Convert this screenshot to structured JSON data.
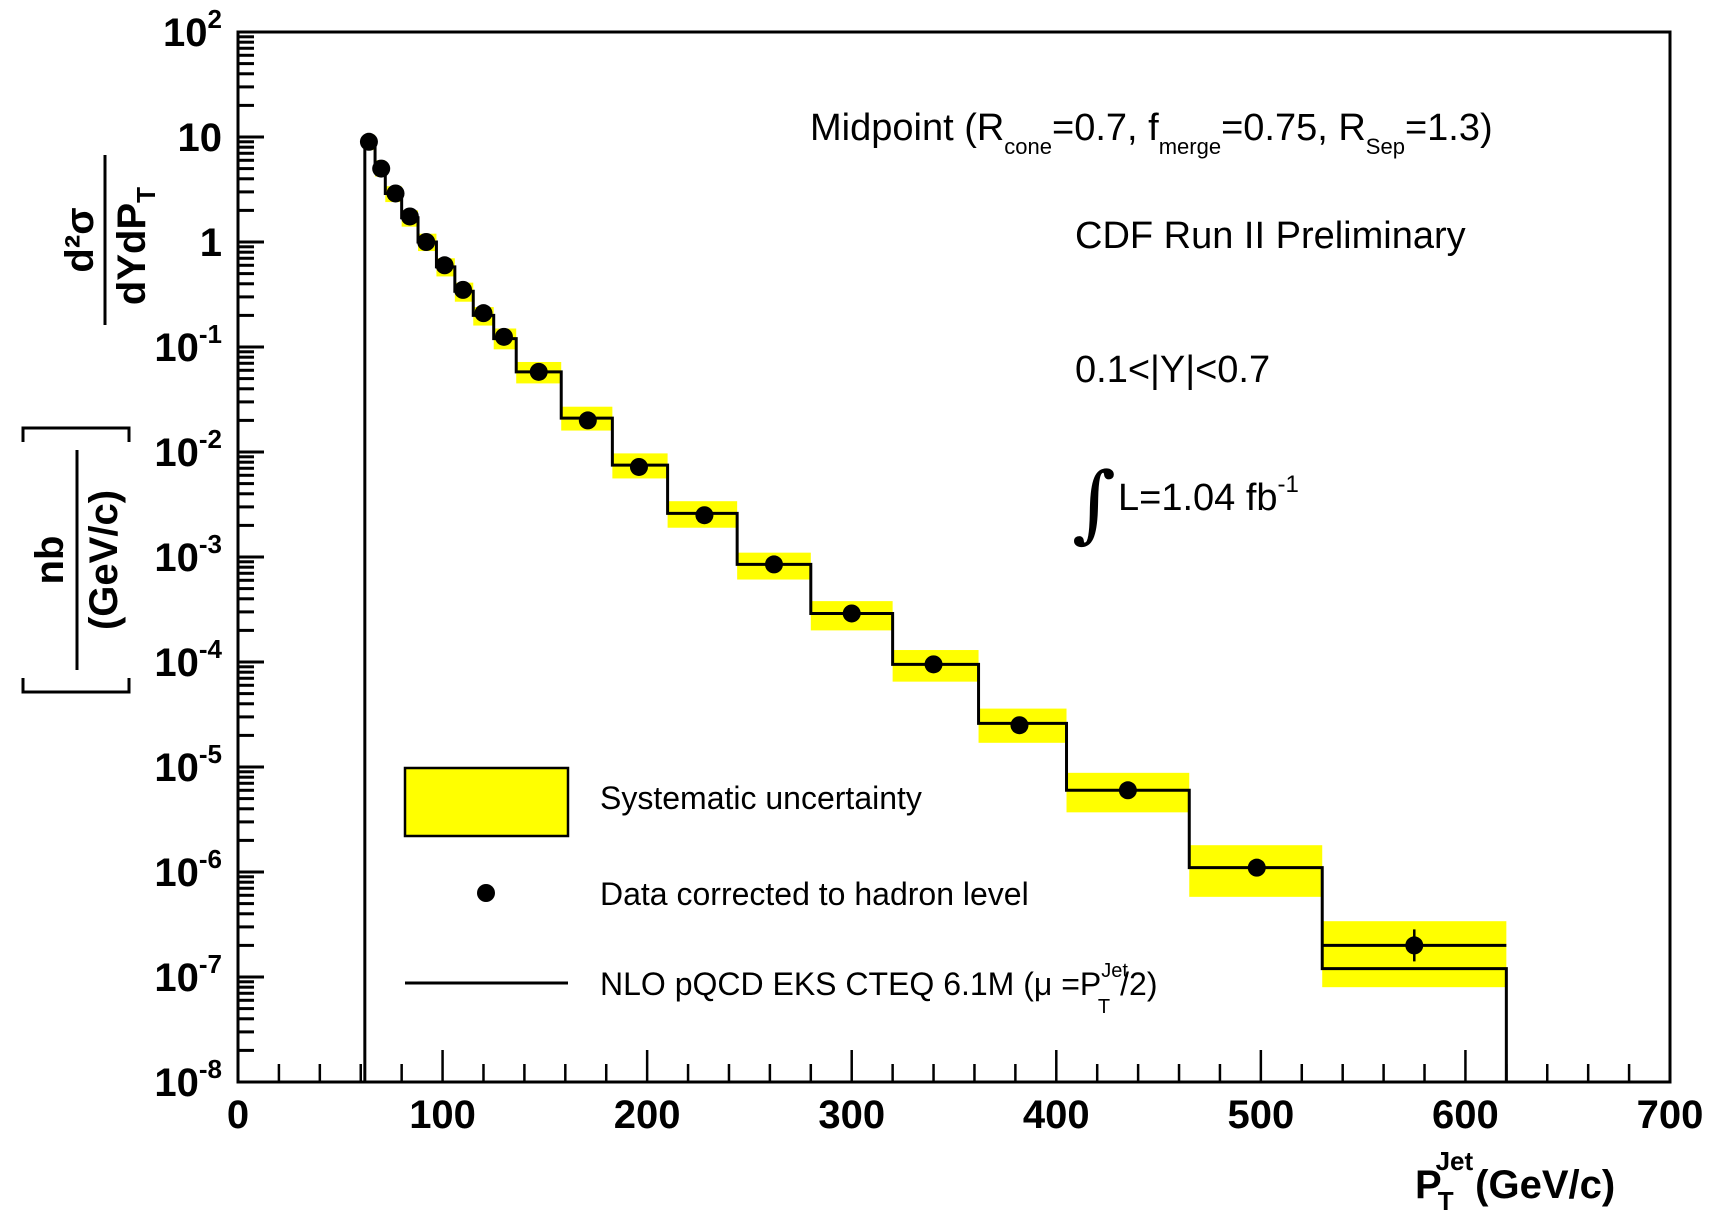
{
  "chart_data": {
    "type": "step-histogram-with-points",
    "x_axis": {
      "label_main": "P",
      "label_sub": "T",
      "label_sup": "Jet",
      "label_unit": "(GeV/c)",
      "range": [
        0,
        700
      ],
      "ticks": [
        0,
        100,
        200,
        300,
        400,
        500,
        600,
        700
      ],
      "tick_labels": [
        "0",
        "100",
        "200",
        "300",
        "400",
        "500",
        "600",
        "700"
      ]
    },
    "y_axis": {
      "scale": "log",
      "range": [
        1e-08,
        100
      ],
      "label_numerator": "d²σ",
      "label_denominator": "dYdP",
      "label_denominator_sub": "T",
      "unit_numerator": "nb",
      "unit_denominator": "(GeV/c)",
      "ticks": [
        {
          "value": 100,
          "base": "10",
          "exp": "2"
        },
        {
          "value": 10,
          "base": "10",
          "exp": ""
        },
        {
          "value": 1,
          "base": "1",
          "exp": ""
        },
        {
          "value": 0.1,
          "base": "10",
          "exp": "-1"
        },
        {
          "value": 0.01,
          "base": "10",
          "exp": "-2"
        },
        {
          "value": 0.001,
          "base": "10",
          "exp": "-3"
        },
        {
          "value": 0.0001,
          "base": "10",
          "exp": "-4"
        },
        {
          "value": 1e-05,
          "base": "10",
          "exp": "-5"
        },
        {
          "value": 1e-06,
          "base": "10",
          "exp": "-6"
        },
        {
          "value": 1e-07,
          "base": "10",
          "exp": "-7"
        },
        {
          "value": 1e-08,
          "base": "10",
          "exp": "-8"
        }
      ]
    },
    "bins": [
      {
        "lo": 62,
        "hi": 67,
        "nlo": 9.0,
        "syst_lo": 7.5,
        "syst_hi": 10.5,
        "x": 64,
        "y": 9.0
      },
      {
        "lo": 67,
        "hi": 72,
        "nlo": 5.0,
        "syst_lo": 4.2,
        "syst_hi": 6.0,
        "x": 70,
        "y": 5.0
      },
      {
        "lo": 72,
        "hi": 80,
        "nlo": 2.9,
        "syst_lo": 2.4,
        "syst_hi": 3.4,
        "x": 77,
        "y": 2.9
      },
      {
        "lo": 80,
        "hi": 88,
        "nlo": 1.7,
        "syst_lo": 1.4,
        "syst_hi": 2.0,
        "x": 84,
        "y": 1.75
      },
      {
        "lo": 88,
        "hi": 97,
        "nlo": 1.0,
        "syst_lo": 0.82,
        "syst_hi": 1.2,
        "x": 92,
        "y": 1.0
      },
      {
        "lo": 97,
        "hi": 106,
        "nlo": 0.58,
        "syst_lo": 0.47,
        "syst_hi": 0.7,
        "x": 101,
        "y": 0.6
      },
      {
        "lo": 106,
        "hi": 115,
        "nlo": 0.34,
        "syst_lo": 0.27,
        "syst_hi": 0.41,
        "x": 110,
        "y": 0.35
      },
      {
        "lo": 115,
        "hi": 125,
        "nlo": 0.2,
        "syst_lo": 0.16,
        "syst_hi": 0.24,
        "x": 120,
        "y": 0.21
      },
      {
        "lo": 125,
        "hi": 136,
        "nlo": 0.12,
        "syst_lo": 0.095,
        "syst_hi": 0.15,
        "x": 130,
        "y": 0.125
      },
      {
        "lo": 136,
        "hi": 158,
        "nlo": 0.058,
        "syst_lo": 0.045,
        "syst_hi": 0.072,
        "x": 147,
        "y": 0.058
      },
      {
        "lo": 158,
        "hi": 183,
        "nlo": 0.021,
        "syst_lo": 0.016,
        "syst_hi": 0.027,
        "x": 171,
        "y": 0.02
      },
      {
        "lo": 183,
        "hi": 210,
        "nlo": 0.0075,
        "syst_lo": 0.0056,
        "syst_hi": 0.0097,
        "x": 196,
        "y": 0.0072
      },
      {
        "lo": 210,
        "hi": 244,
        "nlo": 0.0026,
        "syst_lo": 0.0019,
        "syst_hi": 0.0034,
        "x": 228,
        "y": 0.0025
      },
      {
        "lo": 244,
        "hi": 280,
        "nlo": 0.00085,
        "syst_lo": 0.00061,
        "syst_hi": 0.0011,
        "x": 262,
        "y": 0.00085
      },
      {
        "lo": 280,
        "hi": 320,
        "nlo": 0.00029,
        "syst_lo": 0.0002,
        "syst_hi": 0.00038,
        "x": 300,
        "y": 0.00029
      },
      {
        "lo": 320,
        "hi": 362,
        "nlo": 9.5e-05,
        "syst_lo": 6.5e-05,
        "syst_hi": 0.00013,
        "x": 340,
        "y": 9.5e-05
      },
      {
        "lo": 362,
        "hi": 405,
        "nlo": 2.6e-05,
        "syst_lo": 1.7e-05,
        "syst_hi": 3.6e-05,
        "x": 382,
        "y": 2.5e-05
      },
      {
        "lo": 405,
        "hi": 465,
        "nlo": 6e-06,
        "syst_lo": 3.7e-06,
        "syst_hi": 8.8e-06,
        "x": 435,
        "y": 6e-06
      },
      {
        "lo": 465,
        "hi": 530,
        "nlo": 1.1e-06,
        "syst_lo": 5.8e-07,
        "syst_hi": 1.8e-06,
        "x": 498,
        "y": 1.1e-06
      },
      {
        "lo": 530,
        "hi": 620,
        "nlo": 1.2e-07,
        "syst_lo": 8e-08,
        "syst_hi": 3.4e-07,
        "x": 575,
        "y": 2e-07,
        "nlo_alt": 2e-07
      }
    ],
    "annotations": {
      "algo_main": "Midpoint  (R",
      "algo_sub1": "cone",
      "algo_mid1": "=0.7, f",
      "algo_sub2": "merge",
      "algo_mid2": "=0.75, R",
      "algo_sub3": "Sep",
      "algo_end": "=1.3)",
      "experiment": "CDF Run II Preliminary",
      "rapidity": "0.1<|Y|<0.7",
      "integral_sign": "∫",
      "lumi_main": "L=1.04 fb",
      "lumi_sup": "-1"
    },
    "legend": {
      "systematic": "Systematic uncertainty",
      "data": "Data corrected to hadron level",
      "nlo_main": "NLO pQCD EKS CTEQ 6.1M  (μ =P",
      "nlo_sup": "Jet",
      "nlo_sub": "T",
      "nlo_end": "/2)"
    },
    "colors": {
      "band": "#ffff00",
      "line": "#000000",
      "marker": "#000000"
    }
  }
}
